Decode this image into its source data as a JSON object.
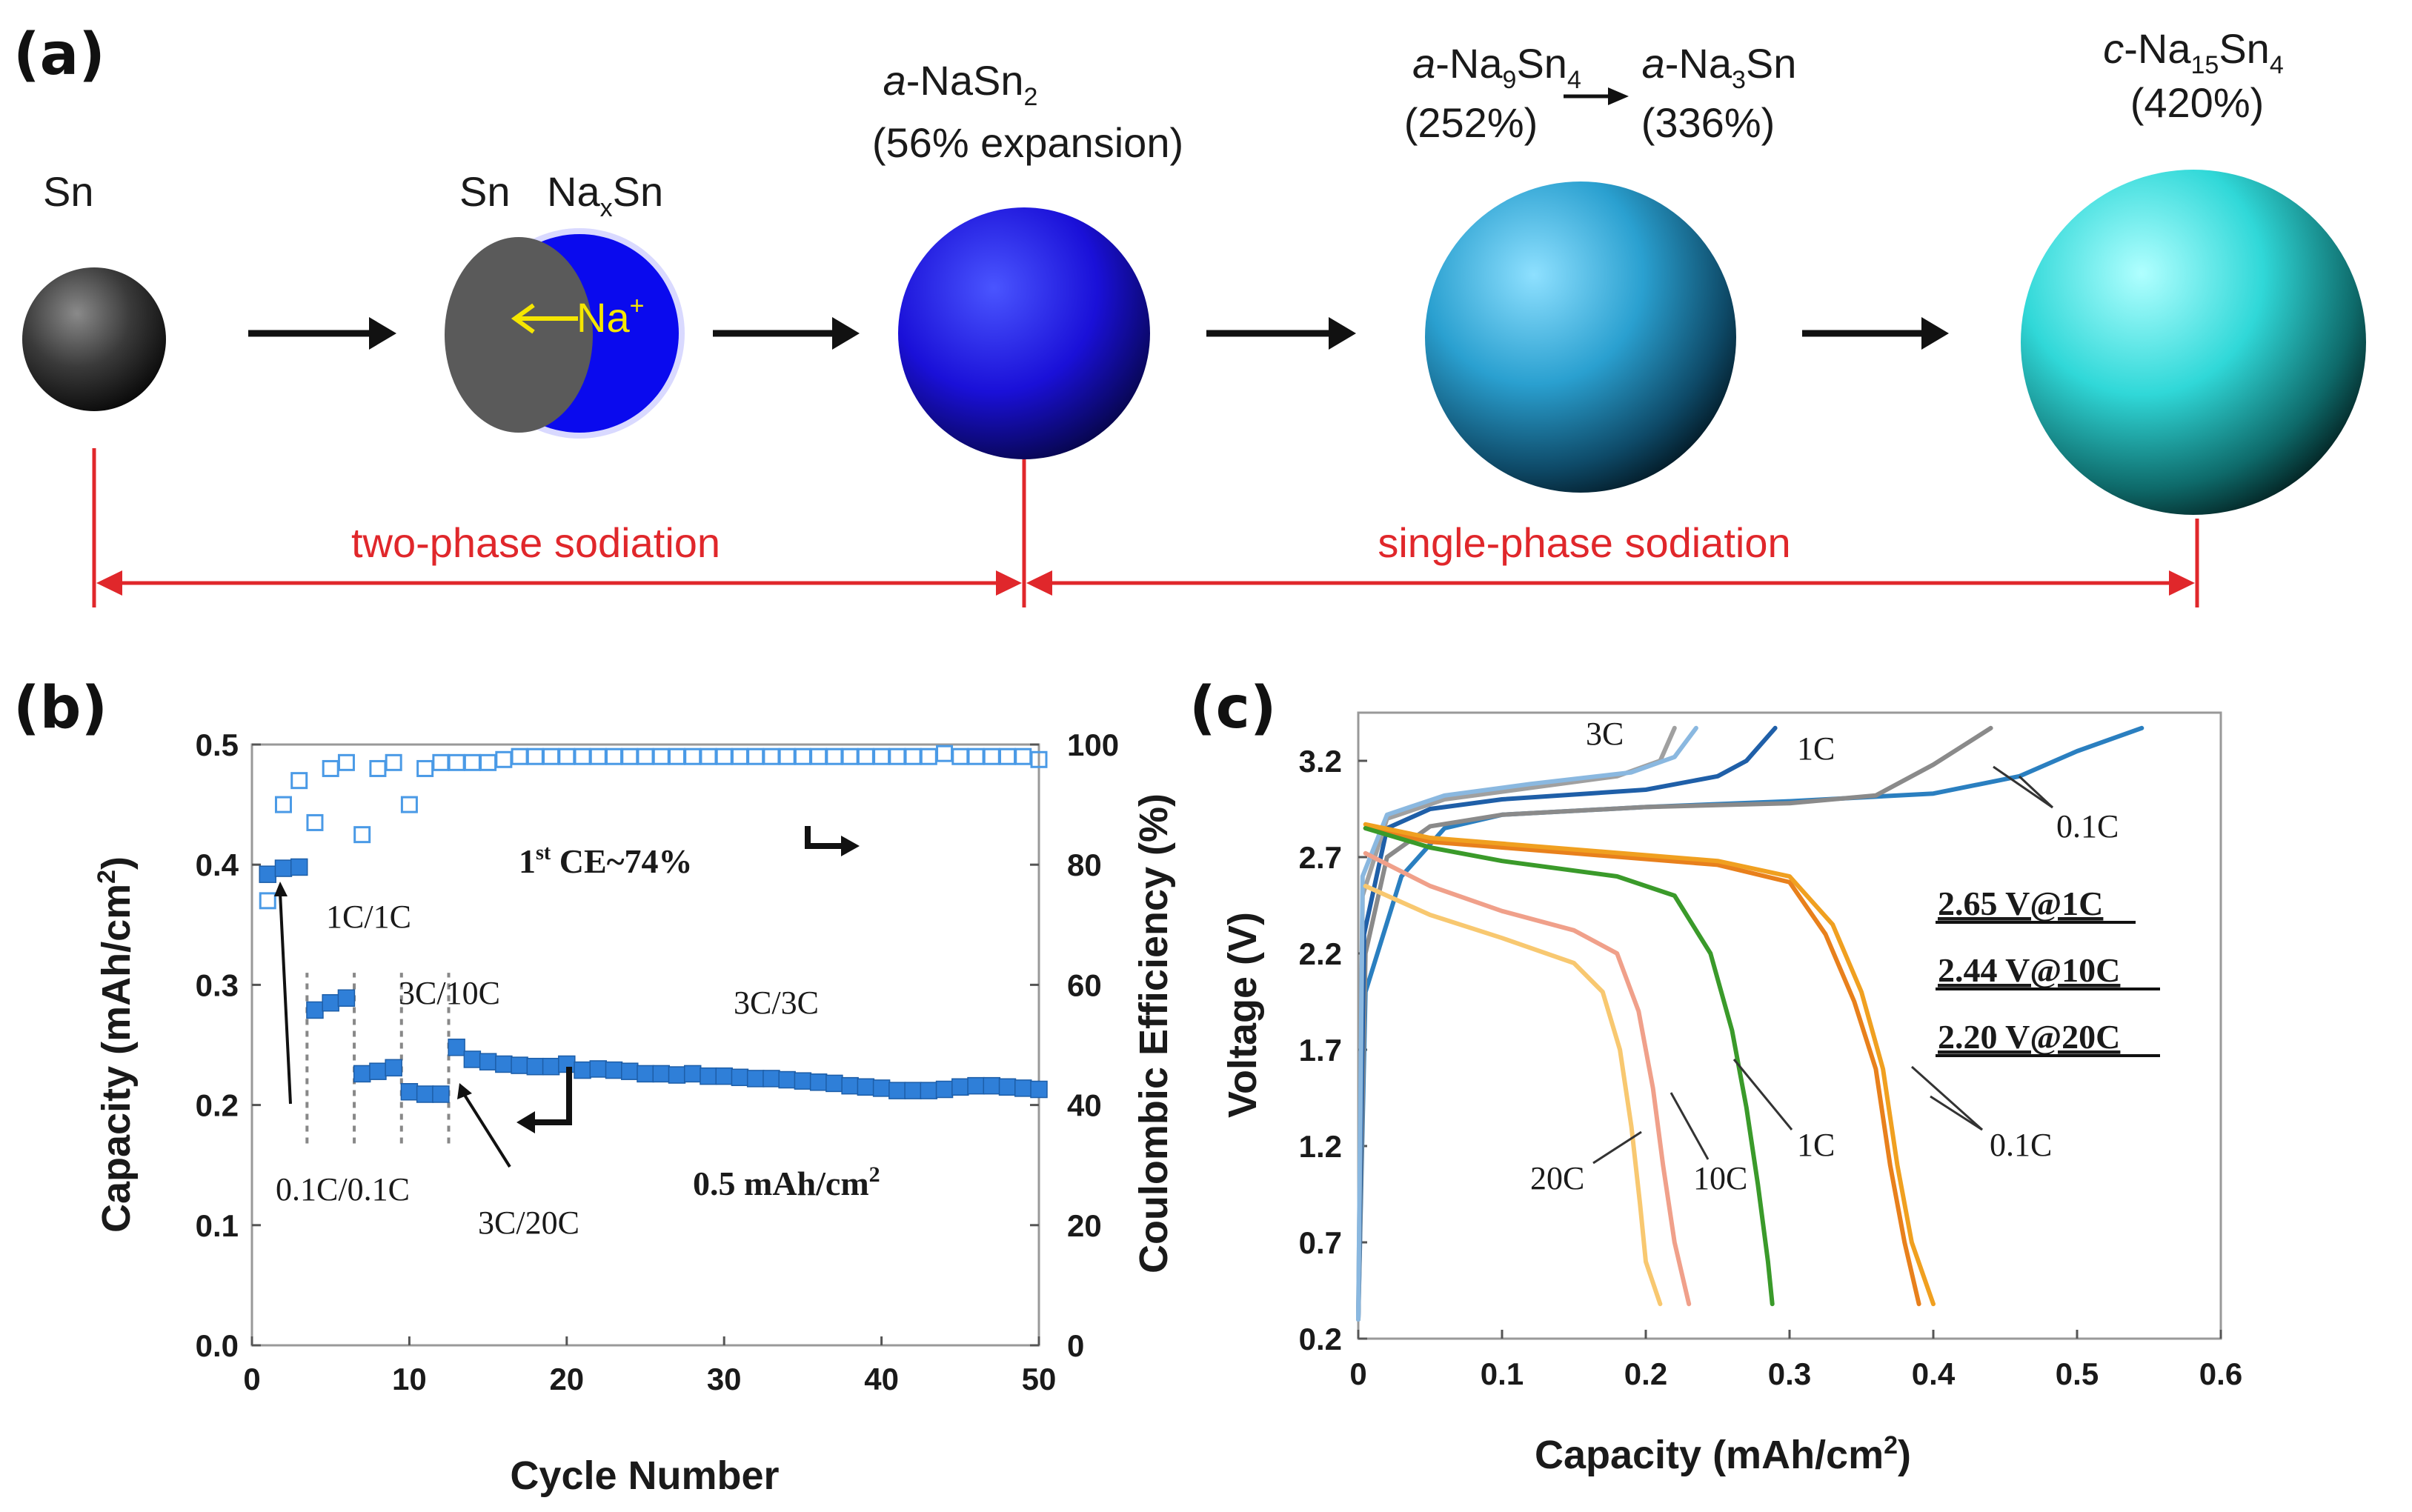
{
  "panel_a": {
    "label": "(a)",
    "stages": [
      {
        "name": "Sn"
      },
      {
        "sn": "Sn",
        "naxsn_base": "Na",
        "naxsn_sub": "x",
        "naxsn_end": "Sn",
        "ion": "Na",
        "ion_sup": "+"
      },
      {
        "prefix": "a",
        "formula_base": "-NaSn",
        "formula_sub": "2",
        "note": "(56% expansion)"
      },
      {
        "p1": "a",
        "f1_base": "-Na",
        "f1_sub1": "9",
        "f1_mid": "Sn",
        "f1_sub2": "4",
        "f1_note": "(252%)",
        "p2": "a",
        "f2_base": "-Na",
        "f2_sub": "3",
        "f2_end": "Sn",
        "f2_note": "(336%)"
      },
      {
        "prefix": "c",
        "base": "-Na",
        "sub1": "15",
        "mid": "Sn",
        "sub2": "4",
        "note": "(420%)"
      }
    ],
    "regions": {
      "left": "two-phase sodiation",
      "right": "single-phase sodiation"
    },
    "colors": {
      "sn": "#3a3a3a",
      "nasn2": "#1a10d8",
      "na9": "#2aa0d0",
      "na15": "#30d8d8",
      "arrow_red": "#e0272b"
    }
  },
  "chart_data": [
    {
      "panel": "(b)",
      "type": "scatter",
      "xlabel": "Cycle Number",
      "ylabel_left": "Capacity (mAh/cm",
      "ylabel_left_sup": "2",
      "ylabel_left_end": ")",
      "ylabel_right": "Coulombic Efficiency (%)",
      "xlim": [
        0,
        50
      ],
      "ylim_left": [
        0,
        0.5
      ],
      "ylim_right": [
        0,
        100
      ],
      "xticks": [
        "0",
        "10",
        "20",
        "30",
        "40",
        "50"
      ],
      "yticks_left": [
        "0.0",
        "0.1",
        "0.2",
        "0.3",
        "0.4",
        "0.5"
      ],
      "yticks_right": [
        "0",
        "20",
        "40",
        "60",
        "80",
        "100"
      ],
      "series": [
        {
          "name": "Capacity",
          "axis": "left",
          "marker": "filled-square",
          "color": "#2f7fd8",
          "x": [
            1,
            2,
            3,
            4,
            5,
            6,
            7,
            8,
            9,
            10,
            11,
            12,
            13,
            14,
            15,
            16,
            17,
            18,
            19,
            20,
            21,
            22,
            23,
            24,
            25,
            26,
            27,
            28,
            29,
            30,
            31,
            32,
            33,
            34,
            35,
            36,
            37,
            38,
            39,
            40,
            41,
            42,
            43,
            44,
            45,
            46,
            47,
            48,
            49,
            50
          ],
          "y": [
            0.392,
            0.397,
            0.398,
            0.279,
            0.285,
            0.289,
            0.226,
            0.228,
            0.231,
            0.211,
            0.209,
            0.209,
            0.248,
            0.238,
            0.236,
            0.234,
            0.233,
            0.232,
            0.232,
            0.234,
            0.229,
            0.23,
            0.229,
            0.228,
            0.226,
            0.226,
            0.225,
            0.226,
            0.224,
            0.224,
            0.223,
            0.222,
            0.222,
            0.221,
            0.22,
            0.219,
            0.218,
            0.216,
            0.215,
            0.214,
            0.212,
            0.212,
            0.212,
            0.213,
            0.215,
            0.216,
            0.216,
            0.215,
            0.214,
            0.213
          ]
        },
        {
          "name": "Coulombic Efficiency",
          "axis": "right",
          "marker": "open-square",
          "color": "#4a9ae6",
          "x": [
            1,
            2,
            3,
            4,
            5,
            6,
            7,
            8,
            9,
            10,
            11,
            12,
            13,
            14,
            15,
            16,
            17,
            18,
            19,
            20,
            21,
            22,
            23,
            24,
            25,
            26,
            27,
            28,
            29,
            30,
            31,
            32,
            33,
            34,
            35,
            36,
            37,
            38,
            39,
            40,
            41,
            42,
            43,
            44,
            45,
            46,
            47,
            48,
            49,
            50
          ],
          "y": [
            74,
            90,
            94,
            87,
            96,
            97,
            85,
            96,
            97,
            90,
            96,
            97,
            97,
            97,
            97,
            97.5,
            98,
            98,
            98,
            98,
            98,
            98,
            98,
            98,
            98,
            98,
            98,
            98,
            98,
            98,
            98,
            98,
            98,
            98,
            98,
            98,
            98,
            98,
            98,
            98,
            98,
            98,
            98,
            98.5,
            98,
            98,
            98,
            98,
            98,
            97.5
          ]
        }
      ],
      "annotations": {
        "ce": "1",
        "ce_sup": "st",
        "ce_end": " CE~74%",
        "r1": "1C/1C",
        "r2": "3C/10C",
        "r3": "3C/3C",
        "r4": "0.1C/0.1C",
        "r5": "3C/20C",
        "areal": "0.5 mAh/cm",
        "areal_sup": "2"
      },
      "phase_cycles": [
        3.5,
        6.5,
        9.5,
        12.5
      ]
    },
    {
      "panel": "(c)",
      "type": "line",
      "xlabel": "Capacity (mAh/cm",
      "xlabel_sup": "2",
      "xlabel_end": ")",
      "ylabel": "Voltage (V)",
      "xlim": [
        0,
        0.6
      ],
      "ylim": [
        0.2,
        3.45
      ],
      "xticks": [
        "0",
        "0.1",
        "0.2",
        "0.3",
        "0.4",
        "0.5",
        "0.6"
      ],
      "yticks": [
        "0.2",
        "0.7",
        "1.2",
        "1.7",
        "2.2",
        "2.7",
        "3.2"
      ],
      "series": [
        {
          "name": "0.1C charge",
          "color": "#2a7fc0",
          "points": [
            [
              0,
              0.3
            ],
            [
              0.005,
              2.0
            ],
            [
              0.03,
              2.6
            ],
            [
              0.06,
              2.85
            ],
            [
              0.1,
              2.92
            ],
            [
              0.2,
              2.96
            ],
            [
              0.3,
              2.99
            ],
            [
              0.4,
              3.03
            ],
            [
              0.46,
              3.12
            ],
            [
              0.5,
              3.25
            ],
            [
              0.545,
              3.37
            ]
          ]
        },
        {
          "name": "0.1C charge b",
          "color": "#8a8a8a",
          "points": [
            [
              0,
              0.3
            ],
            [
              0.005,
              2.2
            ],
            [
              0.02,
              2.7
            ],
            [
              0.05,
              2.86
            ],
            [
              0.1,
              2.92
            ],
            [
              0.2,
              2.96
            ],
            [
              0.3,
              2.98
            ],
            [
              0.36,
              3.02
            ],
            [
              0.4,
              3.18
            ],
            [
              0.44,
              3.37
            ]
          ]
        },
        {
          "name": "1C charge",
          "color": "#1f5fa8",
          "points": [
            [
              0,
              0.3
            ],
            [
              0.004,
              2.3
            ],
            [
              0.02,
              2.85
            ],
            [
              0.05,
              2.95
            ],
            [
              0.1,
              3.0
            ],
            [
              0.2,
              3.05
            ],
            [
              0.25,
              3.12
            ],
            [
              0.27,
              3.2
            ],
            [
              0.29,
              3.37
            ]
          ]
        },
        {
          "name": "3C charge a",
          "color": "#a0a0a0",
          "points": [
            [
              0,
              0.3
            ],
            [
              0.003,
              2.5
            ],
            [
              0.02,
              2.9
            ],
            [
              0.06,
              3.0
            ],
            [
              0.12,
              3.06
            ],
            [
              0.18,
              3.12
            ],
            [
              0.21,
              3.2
            ],
            [
              0.22,
              3.37
            ]
          ]
        },
        {
          "name": "3C charge b",
          "color": "#8ab8e0",
          "points": [
            [
              0,
              0.3
            ],
            [
              0.003,
              2.6
            ],
            [
              0.02,
              2.92
            ],
            [
              0.06,
              3.02
            ],
            [
              0.12,
              3.08
            ],
            [
              0.19,
              3.14
            ],
            [
              0.22,
              3.22
            ],
            [
              0.235,
              3.37
            ]
          ]
        },
        {
          "name": "0.1C discharge a",
          "color": "#e8801c",
          "points": [
            [
              0.005,
              2.85
            ],
            [
              0.05,
              2.78
            ],
            [
              0.15,
              2.72
            ],
            [
              0.25,
              2.66
            ],
            [
              0.3,
              2.57
            ],
            [
              0.325,
              2.3
            ],
            [
              0.345,
              1.95
            ],
            [
              0.36,
              1.6
            ],
            [
              0.37,
              1.1
            ],
            [
              0.38,
              0.7
            ],
            [
              0.39,
              0.38
            ]
          ]
        },
        {
          "name": "0.1C discharge b",
          "color": "#f0a020",
          "points": [
            [
              0.005,
              2.87
            ],
            [
              0.05,
              2.8
            ],
            [
              0.15,
              2.74
            ],
            [
              0.25,
              2.68
            ],
            [
              0.3,
              2.6
            ],
            [
              0.33,
              2.35
            ],
            [
              0.35,
              2.0
            ],
            [
              0.365,
              1.6
            ],
            [
              0.375,
              1.1
            ],
            [
              0.385,
              0.7
            ],
            [
              0.4,
              0.38
            ]
          ]
        },
        {
          "name": "1C discharge",
          "color": "#3a9a2a",
          "points": [
            [
              0.005,
              2.85
            ],
            [
              0.05,
              2.75
            ],
            [
              0.1,
              2.68
            ],
            [
              0.18,
              2.6
            ],
            [
              0.22,
              2.5
            ],
            [
              0.245,
              2.2
            ],
            [
              0.26,
              1.8
            ],
            [
              0.27,
              1.4
            ],
            [
              0.278,
              1.0
            ],
            [
              0.285,
              0.6
            ],
            [
              0.288,
              0.38
            ]
          ]
        },
        {
          "name": "10C discharge",
          "color": "#f0a08a",
          "points": [
            [
              0.005,
              2.72
            ],
            [
              0.05,
              2.55
            ],
            [
              0.1,
              2.42
            ],
            [
              0.15,
              2.32
            ],
            [
              0.18,
              2.2
            ],
            [
              0.195,
              1.9
            ],
            [
              0.205,
              1.5
            ],
            [
              0.212,
              1.1
            ],
            [
              0.22,
              0.7
            ],
            [
              0.23,
              0.38
            ]
          ]
        },
        {
          "name": "20C discharge",
          "color": "#f8c870",
          "points": [
            [
              0.005,
              2.55
            ],
            [
              0.05,
              2.4
            ],
            [
              0.1,
              2.28
            ],
            [
              0.15,
              2.15
            ],
            [
              0.17,
              2.0
            ],
            [
              0.182,
              1.7
            ],
            [
              0.19,
              1.3
            ],
            [
              0.196,
              0.9
            ],
            [
              0.2,
              0.6
            ],
            [
              0.21,
              0.38
            ]
          ]
        }
      ],
      "annotations": {
        "c3": "3C",
        "c1_top": "1C",
        "c01_top": "0.1C",
        "c20": "20C",
        "c10": "10C",
        "c1_bot": "1C",
        "c01_bot": "0.1C",
        "v1": "2.65 V@1C",
        "v2": "2.44 V@10C",
        "v3": "2.20 V@20C"
      }
    }
  ]
}
